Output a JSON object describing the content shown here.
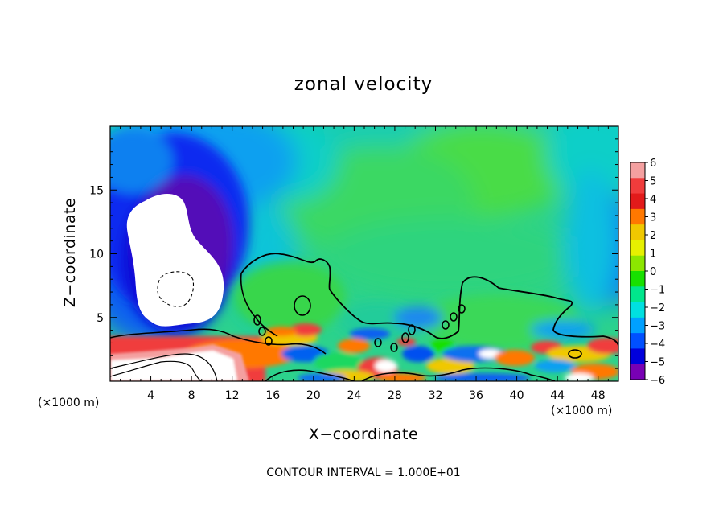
{
  "chart_data": {
    "type": "heatmap",
    "title": "zonal velocity",
    "xlabel": "X−coordinate",
    "ylabel": "Z−coordinate",
    "x_unit_left": "(×1000 m)",
    "x_unit_right": "(×1000 m)",
    "xlim": [
      0,
      50
    ],
    "ylim": [
      0,
      20
    ],
    "x_ticks": [
      4,
      8,
      12,
      16,
      20,
      24,
      28,
      32,
      36,
      40,
      44,
      48
    ],
    "x_tick_labels": [
      "4",
      "8",
      "12",
      "16",
      "20",
      "24",
      "28",
      "32",
      "36",
      "40",
      "44",
      "48"
    ],
    "y_ticks": [
      5,
      10,
      15
    ],
    "y_tick_labels": [
      "5",
      "10",
      "15"
    ],
    "colorbar": {
      "levels": [
        6,
        5,
        4,
        3,
        2,
        1,
        0,
        -1,
        -2,
        -3,
        -4,
        -5,
        -6
      ],
      "labels": [
        "6",
        "5",
        "4",
        "3",
        "2",
        "1",
        "0",
        "−1",
        "−2",
        "−3",
        "−4",
        "−5",
        "−6"
      ],
      "colors": [
        "#f4a0a0",
        "#f03c3c",
        "#e21a1a",
        "#ff7800",
        "#f0c800",
        "#e6f000",
        "#8ce600",
        "#18e000",
        "#00e68c",
        "#00e0e0",
        "#00a0ff",
        "#0050ff",
        "#0000dc",
        "#7800b4"
      ]
    },
    "footer": "CONTOUR INTERVAL = 1.000E+01",
    "colors": {
      "background": "#1ec87a",
      "upper_left_blue": "#0028f0",
      "purple": "#6a0aa8",
      "white_region": "#ffffff",
      "contour": "#000000"
    }
  }
}
